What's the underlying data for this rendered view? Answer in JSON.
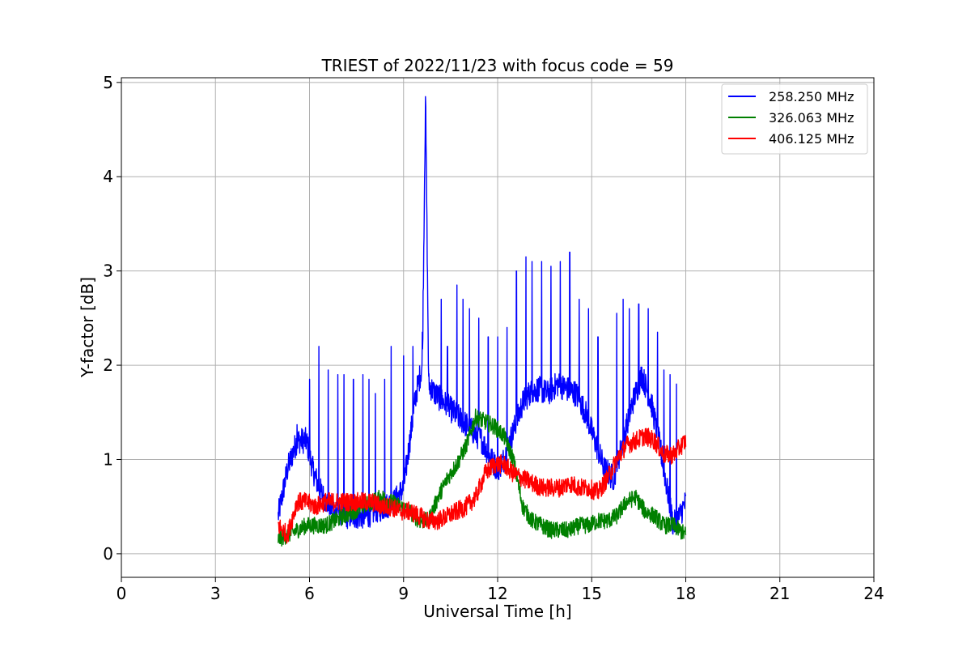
{
  "chart_data": {
    "type": "line",
    "title": "TRIEST of 2022/11/23 with focus code = 59",
    "xlabel": "Universal Time [h]",
    "ylabel": "Y-factor [dB]",
    "xlim": [
      0,
      24
    ],
    "ylim": [
      -0.25,
      5.05
    ],
    "xticks": [
      0,
      3,
      6,
      9,
      12,
      15,
      18,
      21,
      24
    ],
    "yticks": [
      0,
      1,
      2,
      3,
      4,
      5
    ],
    "grid": true,
    "legend_position": "top-right",
    "series": [
      {
        "name": "258.250 MHz",
        "color": "#0000ff",
        "x": [
          5.0,
          5.3,
          5.6,
          5.9,
          6.1,
          6.3,
          6.6,
          6.9,
          7.2,
          7.5,
          7.8,
          8.1,
          8.4,
          8.7,
          9.0,
          9.2,
          9.4,
          9.6,
          9.7,
          9.8,
          10.0,
          10.3,
          10.6,
          10.9,
          11.2,
          11.5,
          11.8,
          12.0,
          12.2,
          12.5,
          12.8,
          13.0,
          13.3,
          13.6,
          13.9,
          14.2,
          14.5,
          14.8,
          15.1,
          15.4,
          15.7,
          16.0,
          16.3,
          16.6,
          16.9,
          17.2,
          17.4,
          17.6,
          17.8,
          18.0
        ],
        "y": [
          0.4,
          0.9,
          1.2,
          1.2,
          0.9,
          0.7,
          0.5,
          0.45,
          0.4,
          0.4,
          0.4,
          0.45,
          0.5,
          0.55,
          0.7,
          1.2,
          1.7,
          2.0,
          4.85,
          1.8,
          1.7,
          1.6,
          1.5,
          1.4,
          1.3,
          1.2,
          1.0,
          0.9,
          1.0,
          1.3,
          1.6,
          1.7,
          1.75,
          1.7,
          1.8,
          1.75,
          1.7,
          1.5,
          1.2,
          0.9,
          0.8,
          1.2,
          1.6,
          1.9,
          1.6,
          1.1,
          0.7,
          0.3,
          0.4,
          0.55
        ],
        "spikes": [
          [
            5.6,
            1.37
          ],
          [
            6.0,
            1.85
          ],
          [
            6.3,
            2.2
          ],
          [
            6.6,
            1.95
          ],
          [
            6.9,
            1.9
          ],
          [
            7.1,
            1.9
          ],
          [
            7.4,
            1.85
          ],
          [
            7.7,
            1.9
          ],
          [
            7.9,
            1.85
          ],
          [
            8.1,
            1.7
          ],
          [
            8.4,
            1.85
          ],
          [
            8.6,
            2.2
          ],
          [
            9.0,
            2.1
          ],
          [
            9.3,
            2.2
          ],
          [
            9.6,
            2.35
          ],
          [
            9.7,
            4.85
          ],
          [
            10.2,
            2.7
          ],
          [
            10.4,
            2.2
          ],
          [
            10.7,
            2.85
          ],
          [
            10.9,
            2.7
          ],
          [
            11.1,
            2.6
          ],
          [
            11.4,
            2.5
          ],
          [
            11.7,
            2.3
          ],
          [
            12.0,
            2.3
          ],
          [
            12.3,
            2.4
          ],
          [
            12.6,
            3.0
          ],
          [
            12.9,
            3.15
          ],
          [
            13.1,
            3.1
          ],
          [
            13.4,
            3.1
          ],
          [
            13.7,
            3.05
          ],
          [
            14.0,
            3.1
          ],
          [
            14.3,
            3.2
          ],
          [
            14.6,
            2.7
          ],
          [
            14.9,
            2.6
          ],
          [
            15.2,
            2.3
          ],
          [
            15.8,
            2.55
          ],
          [
            16.0,
            2.7
          ],
          [
            16.2,
            2.6
          ],
          [
            16.5,
            2.65
          ],
          [
            16.8,
            2.6
          ],
          [
            17.1,
            2.35
          ],
          [
            17.3,
            1.95
          ],
          [
            17.5,
            1.9
          ],
          [
            17.7,
            1.8
          ]
        ]
      },
      {
        "name": "326.063 MHz",
        "color": "#008000",
        "x": [
          5.0,
          5.3,
          5.6,
          5.9,
          6.2,
          6.5,
          6.8,
          7.1,
          7.4,
          7.7,
          8.0,
          8.3,
          8.6,
          8.9,
          9.2,
          9.5,
          9.8,
          10.1,
          10.4,
          10.7,
          11.0,
          11.3,
          11.6,
          11.9,
          12.2,
          12.5,
          12.8,
          13.1,
          13.4,
          13.7,
          14.0,
          14.3,
          14.6,
          14.9,
          15.2,
          15.5,
          15.8,
          16.1,
          16.4,
          16.7,
          17.0,
          17.3,
          17.6,
          18.0
        ],
        "y": [
          0.15,
          0.2,
          0.25,
          0.3,
          0.3,
          0.3,
          0.35,
          0.4,
          0.45,
          0.5,
          0.55,
          0.6,
          0.55,
          0.5,
          0.45,
          0.35,
          0.35,
          0.6,
          0.8,
          0.95,
          1.15,
          1.45,
          1.4,
          1.35,
          1.25,
          1.0,
          0.5,
          0.35,
          0.3,
          0.25,
          0.25,
          0.25,
          0.3,
          0.3,
          0.35,
          0.35,
          0.4,
          0.55,
          0.6,
          0.45,
          0.4,
          0.3,
          0.3,
          0.2
        ]
      },
      {
        "name": "406.125 MHz",
        "color": "#ff0000",
        "x": [
          5.0,
          5.3,
          5.6,
          5.9,
          6.2,
          6.5,
          6.8,
          7.1,
          7.4,
          7.7,
          8.0,
          8.3,
          8.6,
          8.9,
          9.2,
          9.5,
          9.8,
          10.1,
          10.4,
          10.7,
          11.0,
          11.3,
          11.6,
          11.9,
          12.2,
          12.5,
          12.8,
          13.1,
          13.4,
          13.7,
          14.0,
          14.3,
          14.6,
          14.9,
          15.2,
          15.5,
          15.8,
          16.1,
          16.4,
          16.7,
          17.0,
          17.3,
          17.6,
          18.0
        ],
        "y": [
          0.3,
          0.2,
          0.55,
          0.55,
          0.5,
          0.55,
          0.55,
          0.55,
          0.55,
          0.55,
          0.55,
          0.5,
          0.5,
          0.45,
          0.45,
          0.4,
          0.35,
          0.35,
          0.4,
          0.45,
          0.5,
          0.6,
          0.85,
          0.95,
          0.95,
          0.85,
          0.8,
          0.75,
          0.7,
          0.7,
          0.7,
          0.75,
          0.7,
          0.7,
          0.65,
          0.8,
          1.0,
          1.15,
          1.2,
          1.25,
          1.2,
          1.05,
          1.05,
          1.2
        ]
      }
    ]
  }
}
